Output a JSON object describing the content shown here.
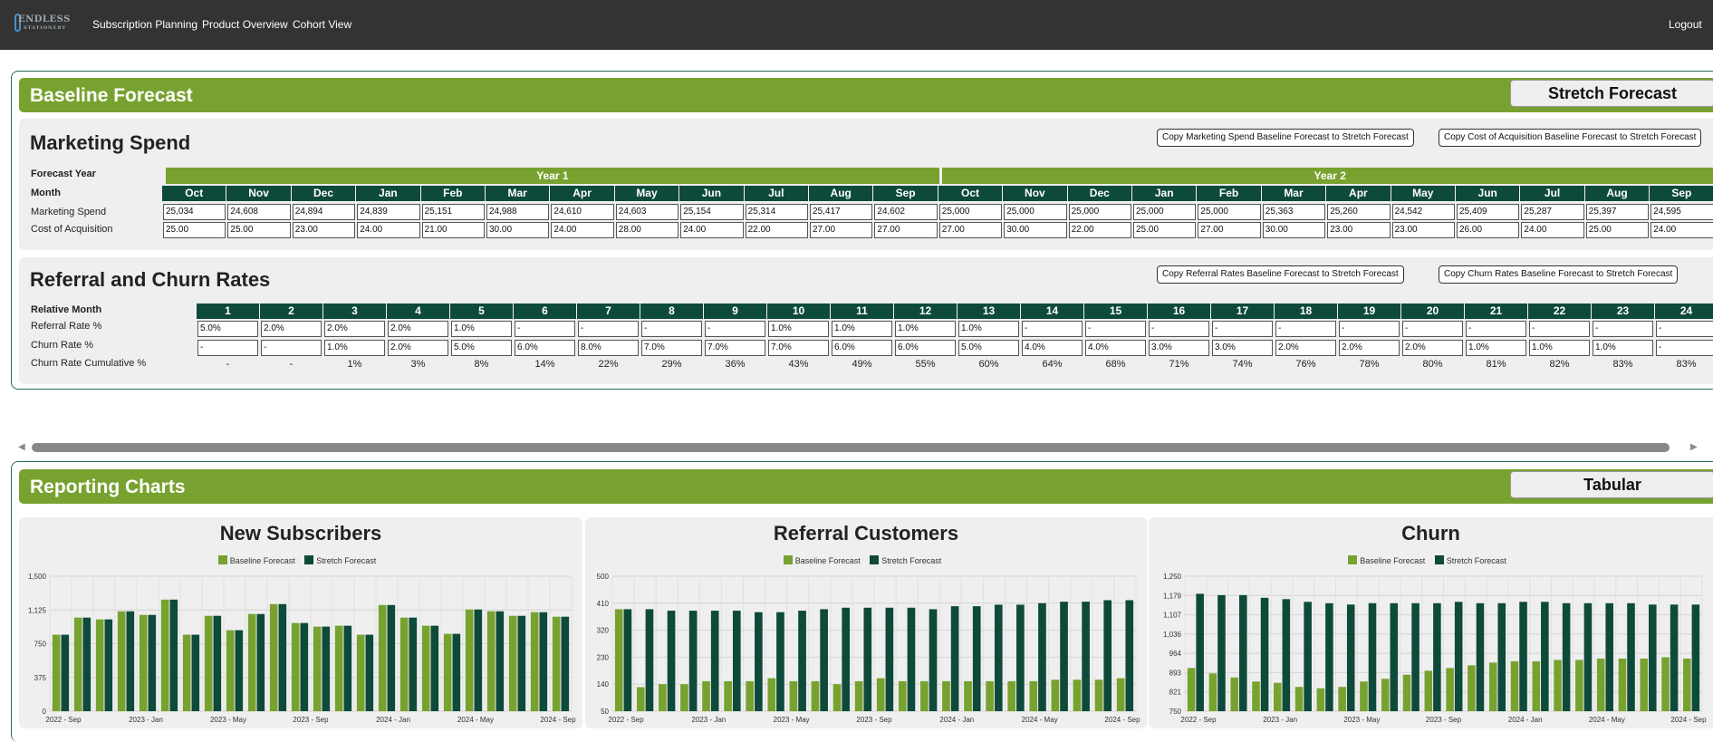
{
  "nav": {
    "logo_top": "ENDLESS",
    "logo_bottom": "STATIONERY",
    "links": [
      "Subscription Planning",
      "Product Overview",
      "Cohort View"
    ],
    "logout": "Logout"
  },
  "forecast": {
    "title": "Baseline Forecast",
    "toggle_label": "Stretch Forecast",
    "marketing": {
      "title": "Marketing Spend",
      "copy_spend_btn": "Copy Marketing Spend Baseline Forecast to Stretch Forecast",
      "copy_cac_btn": "Copy Cost of Acquisition Baseline Forecast to Stretch Forecast",
      "forecast_year_label": "Forecast Year",
      "month_label": "Month",
      "years": [
        "Year 1",
        "Year 2"
      ],
      "months": [
        "Oct",
        "Nov",
        "Dec",
        "Jan",
        "Feb",
        "Mar",
        "Apr",
        "May",
        "Jun",
        "Jul",
        "Aug",
        "Sep",
        "Oct",
        "Nov",
        "Dec",
        "Jan",
        "Feb",
        "Mar",
        "Apr",
        "May",
        "Jun",
        "Jul",
        "Aug",
        "Sep"
      ],
      "spend_label": "Marketing Spend",
      "spend": [
        "25,034",
        "24,608",
        "24,894",
        "24,839",
        "25,151",
        "24,988",
        "24,610",
        "24,603",
        "25,154",
        "25,314",
        "25,417",
        "24,602",
        "25,000",
        "25,000",
        "25,000",
        "25,000",
        "25,000",
        "25,363",
        "25,260",
        "24,542",
        "25,409",
        "25,287",
        "25,397",
        "24,595"
      ],
      "cac_label": "Cost of Acquisition",
      "cac": [
        "25.00",
        "25.00",
        "23.00",
        "24.00",
        "21.00",
        "30.00",
        "24.00",
        "28.00",
        "24.00",
        "22.00",
        "27.00",
        "27.00",
        "27.00",
        "30.00",
        "22.00",
        "25.00",
        "27.00",
        "30.00",
        "23.00",
        "23.00",
        "26.00",
        "24.00",
        "25.00",
        "24.00"
      ]
    },
    "rates": {
      "title": "Referral and Churn Rates",
      "copy_referral_btn": "Copy Referral Rates Baseline Forecast to Stretch Forecast",
      "copy_churn_btn": "Copy Churn Rates Baseline Forecast to Stretch Forecast",
      "relative_month_label": "Relative Month",
      "months": [
        "1",
        "2",
        "3",
        "4",
        "5",
        "6",
        "7",
        "8",
        "9",
        "10",
        "11",
        "12",
        "13",
        "14",
        "15",
        "16",
        "17",
        "18",
        "19",
        "20",
        "21",
        "22",
        "23",
        "24"
      ],
      "referral_label": "Referral Rate %",
      "referral": [
        "5.0%",
        "2.0%",
        "2.0%",
        "2.0%",
        "1.0%",
        "-",
        "-",
        "-",
        "-",
        "1.0%",
        "1.0%",
        "1.0%",
        "1.0%",
        "-",
        "-",
        "-",
        "-",
        "-",
        "-",
        "-",
        "-",
        "-",
        "-",
        "-"
      ],
      "churn_label": "Churn Rate %",
      "churn": [
        "-",
        "-",
        "1.0%",
        "2.0%",
        "5.0%",
        "6.0%",
        "8.0%",
        "7.0%",
        "7.0%",
        "7.0%",
        "6.0%",
        "6.0%",
        "5.0%",
        "4.0%",
        "4.0%",
        "3.0%",
        "3.0%",
        "2.0%",
        "2.0%",
        "2.0%",
        "1.0%",
        "1.0%",
        "1.0%",
        "-"
      ],
      "cumulative_label": "Churn Rate Cumulative %",
      "cumulative": [
        "-",
        "-",
        "1%",
        "3%",
        "8%",
        "14%",
        "22%",
        "29%",
        "36%",
        "43%",
        "49%",
        "55%",
        "60%",
        "64%",
        "68%",
        "71%",
        "74%",
        "76%",
        "78%",
        "80%",
        "81%",
        "82%",
        "83%",
        "83%"
      ]
    }
  },
  "reporting": {
    "title": "Reporting Charts",
    "toggle_label": "Tabular"
  },
  "colors": {
    "baseline": "#78a22f",
    "stretch": "#0d4a3a",
    "topbar": "#333333"
  },
  "chart_data": [
    {
      "type": "bar",
      "title": "New Subscribers",
      "legend": [
        "Baseline Forecast",
        "Stretch Forecast"
      ],
      "yticks": [
        "0",
        "375",
        "750",
        "1,125",
        "1,500"
      ],
      "ylim": [
        0,
        1500
      ],
      "xticks": [
        "2022 - Sep",
        "2023 - Jan",
        "2023 - May",
        "2023 - Sep",
        "2024 - Jan",
        "2024 - May",
        "2024 - Sep"
      ],
      "series": [
        {
          "name": "Baseline Forecast",
          "values": [
            850,
            1040,
            1020,
            1110,
            1070,
            1240,
            850,
            1060,
            900,
            1080,
            1190,
            980,
            940,
            950,
            850,
            1180,
            1040,
            950,
            860,
            1130,
            1110,
            1060,
            1100,
            1050
          ]
        },
        {
          "name": "Stretch Forecast",
          "values": [
            850,
            1040,
            1020,
            1110,
            1070,
            1240,
            850,
            1060,
            900,
            1080,
            1190,
            980,
            940,
            950,
            850,
            1180,
            1040,
            950,
            860,
            1130,
            1110,
            1060,
            1100,
            1050
          ]
        }
      ]
    },
    {
      "type": "bar",
      "title": "Referral Customers",
      "legend": [
        "Baseline Forecast",
        "Stretch Forecast"
      ],
      "yticks": [
        "50",
        "140",
        "230",
        "320",
        "410",
        "500"
      ],
      "ylim": [
        50,
        500
      ],
      "xticks": [
        "2022 - Sep",
        "2023 - Jan",
        "2023 - May",
        "2023 - Sep",
        "2024 - Jan",
        "2024 - May",
        "2024 - Sep"
      ],
      "series": [
        {
          "name": "Baseline Forecast",
          "values": [
            390,
            130,
            140,
            140,
            150,
            150,
            150,
            160,
            150,
            150,
            140,
            150,
            160,
            150,
            150,
            150,
            150,
            150,
            150,
            150,
            155,
            155,
            155,
            160
          ]
        },
        {
          "name": "Stretch Forecast",
          "values": [
            390,
            390,
            385,
            385,
            385,
            385,
            380,
            380,
            385,
            390,
            395,
            395,
            395,
            395,
            390,
            400,
            400,
            405,
            405,
            410,
            415,
            415,
            420,
            420
          ]
        }
      ]
    },
    {
      "type": "bar",
      "title": "Churn",
      "legend": [
        "Baseline Forecast",
        "Stretch Forecast"
      ],
      "yticks": [
        "750",
        "821",
        "893",
        "964",
        "1,036",
        "1,107",
        "1,179",
        "1,250"
      ],
      "ylim": [
        750,
        1250
      ],
      "xticks": [
        "2022 - Sep",
        "2023 - Jan",
        "2023 - May",
        "2023 - Sep",
        "2024 - Jan",
        "2024 - May",
        "2024 - Sep"
      ],
      "series": [
        {
          "name": "Baseline Forecast",
          "values": [
            910,
            890,
            875,
            860,
            855,
            840,
            835,
            840,
            860,
            870,
            885,
            900,
            910,
            920,
            930,
            935,
            935,
            940,
            940,
            945,
            945,
            945,
            950,
            945
          ]
        },
        {
          "name": "Stretch Forecast",
          "values": [
            1185,
            1180,
            1180,
            1170,
            1165,
            1155,
            1150,
            1145,
            1150,
            1150,
            1150,
            1150,
            1155,
            1150,
            1150,
            1155,
            1155,
            1150,
            1150,
            1150,
            1150,
            1145,
            1145,
            1145
          ]
        }
      ]
    }
  ]
}
